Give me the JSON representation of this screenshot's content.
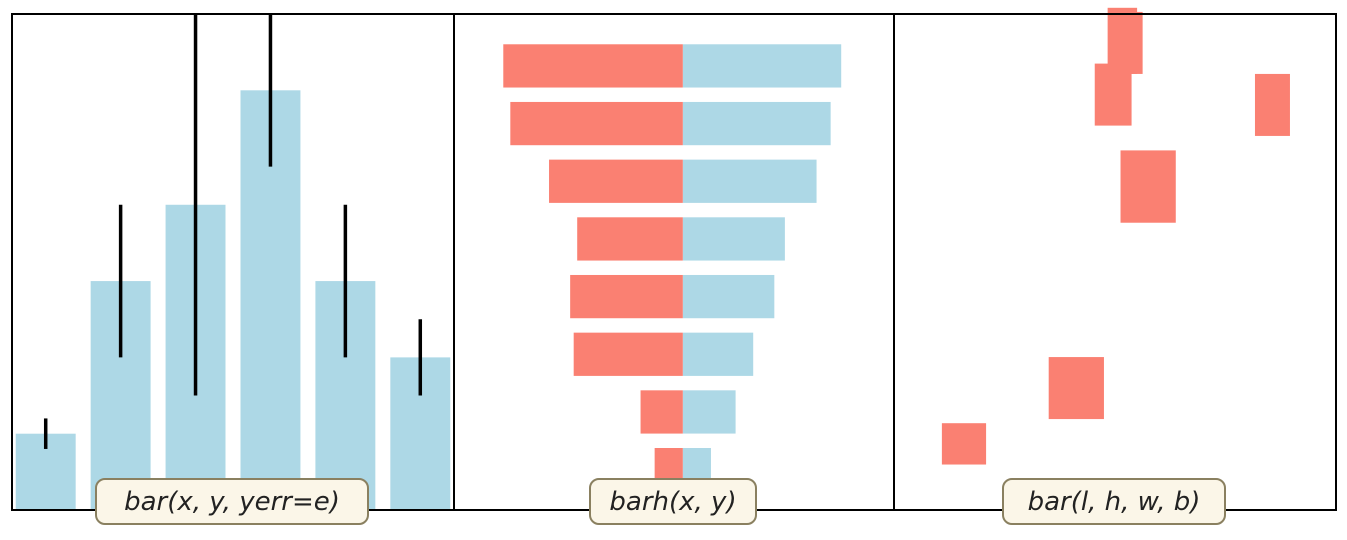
{
  "colors": {
    "bar_blue": "#add8e6",
    "bar_salmon": "#fa8072",
    "error_bar": "#000000",
    "axes_border": "#000000",
    "caption_fill": "#fbf6e8",
    "caption_border": "#8a8060"
  },
  "chart_data": [
    {
      "type": "bar",
      "caption": "bar(x, y, yerr=e)",
      "x": [
        1,
        2,
        3,
        4,
        5,
        6
      ],
      "values": [
        1.0,
        3.0,
        4.0,
        5.5,
        3.0,
        2.0
      ],
      "yerr": [
        0.2,
        1.0,
        2.5,
        1.0,
        1.0,
        0.5
      ],
      "xlim": [
        0.55,
        6.45
      ],
      "ylim": [
        0,
        6.5
      ],
      "color": "bar_blue",
      "errcolor": "error_bar"
    },
    {
      "type": "bar",
      "orientation": "horizontal",
      "caption": "barh(x, y)",
      "categories": [
        1,
        2,
        3,
        4,
        5,
        6,
        7,
        8
      ],
      "series": [
        {
          "color": "bar_blue",
          "values": [
            0.8,
            1.5,
            2.0,
            2.6,
            2.9,
            3.8,
            4.2,
            4.5
          ]
        },
        {
          "color": "bar_salmon",
          "values": [
            -0.8,
            -1.2,
            -3.1,
            -3.2,
            -3.0,
            -3.8,
            -4.9,
            -5.1
          ]
        }
      ],
      "xlim": [
        -6.5,
        6.0
      ],
      "ylim": [
        0.3,
        8.9
      ]
    },
    {
      "type": "bar",
      "caption": "bar(l, h, w, b)",
      "left": [
        1.3,
        4.2,
        6.15,
        6.0,
        5.45,
        4.65,
        5.8,
        9.8
      ],
      "height": [
        1.0,
        1.5,
        1.75,
        1.5,
        1.5,
        0.75,
        1.6,
        1.5
      ],
      "width": [
        1.2,
        1.5,
        1.5,
        0.75,
        1.0,
        1.3,
        0.8,
        0.95
      ],
      "bottom": [
        1.1,
        2.2,
        6.95,
        10.55,
        9.3,
        0.0,
        10.55,
        9.05
      ],
      "xlim": [
        0,
        12
      ],
      "ylim": [
        0,
        12
      ],
      "color": "bar_salmon"
    }
  ]
}
